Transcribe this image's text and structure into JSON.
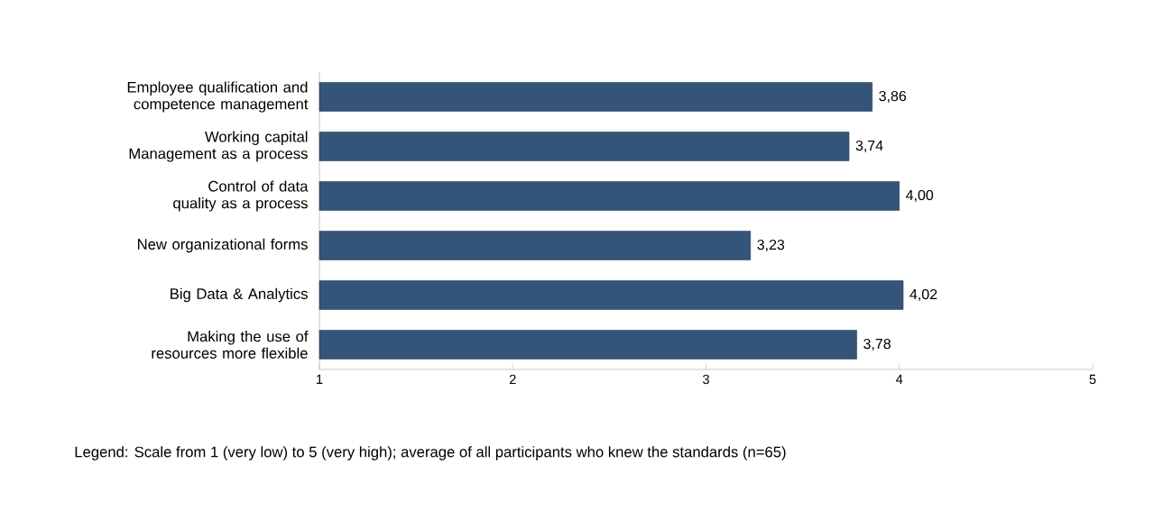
{
  "chart_data": {
    "type": "bar",
    "orientation": "horizontal",
    "categories": [
      "Employee qualification and competence management",
      "Working capital Management as a process",
      "Control of data quality as a process",
      "New organizational forms",
      "Big Data & Analytics",
      "Making the use of resources more flexible"
    ],
    "values": [
      3.86,
      3.74,
      4.0,
      3.23,
      4.02,
      3.78
    ],
    "value_labels": [
      "3,86",
      "3,74",
      "4,00",
      "3,23",
      "4,02",
      "3,78"
    ],
    "color": "#34547a",
    "xlim": [
      1,
      5
    ],
    "xticks": [
      1,
      2,
      3,
      4,
      5
    ],
    "annotations": [
      "Legend: Scale from 1 (very low) to 5 (very high); average of all participants who knew the standards (n=65)"
    ]
  }
}
